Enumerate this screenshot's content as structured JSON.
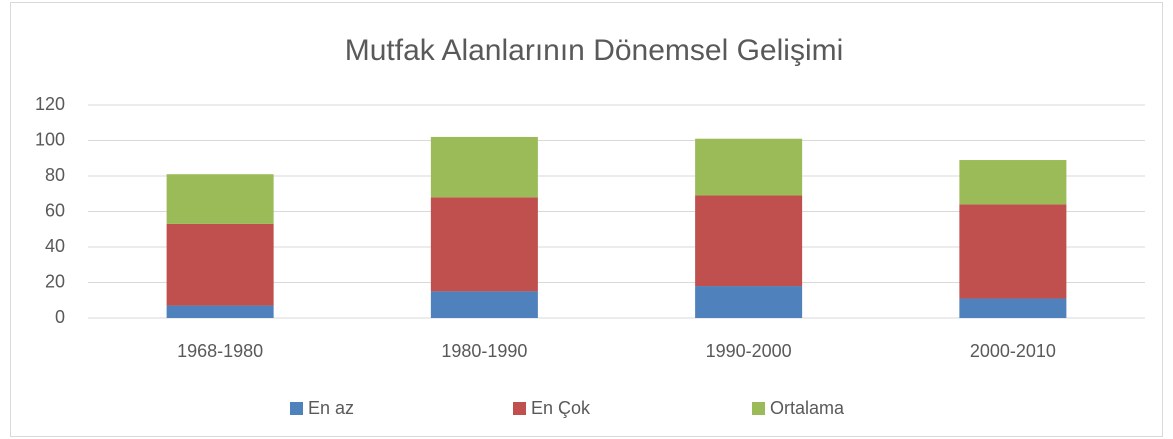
{
  "chart_data": {
    "type": "stacked_bar",
    "title": "Mutfak Alanlarının Dönemsel Gelişimi",
    "categories": [
      "1968-1980",
      "1980-1990",
      "1990-2000",
      "2000-2010"
    ],
    "series": [
      {
        "name": "En az",
        "color": "#4f81bd",
        "values": [
          7,
          15,
          18,
          11
        ]
      },
      {
        "name": "En Çok",
        "color": "#c0504d",
        "values": [
          46,
          53,
          51,
          53
        ]
      },
      {
        "name": "Ortalama",
        "color": "#9bbb59",
        "values": [
          28,
          34,
          32,
          25
        ]
      }
    ],
    "ylim": [
      0,
      120
    ],
    "yticks": [
      0,
      20,
      40,
      60,
      80,
      100,
      120
    ],
    "grid": true,
    "legend": "bottom"
  }
}
